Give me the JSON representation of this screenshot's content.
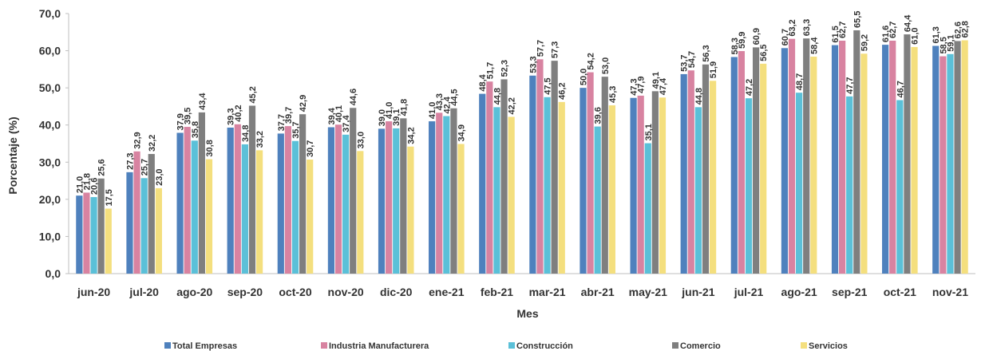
{
  "chart_data": {
    "type": "bar",
    "xlabel": "Mes",
    "ylabel": "Porcentaje (%)",
    "ylim": [
      0,
      70
    ],
    "yticks": [
      "0,0",
      "10,0",
      "20,0",
      "30,0",
      "40,0",
      "50,0",
      "60,0",
      "70,0"
    ],
    "grid": false,
    "legend_position": "bottom",
    "categories": [
      "jun-20",
      "jul-20",
      "ago-20",
      "sep-20",
      "oct-20",
      "nov-20",
      "dic-20",
      "ene-21",
      "feb-21",
      "mar-21",
      "abr-21",
      "may-21",
      "jun-21",
      "jul-21",
      "ago-21",
      "sep-21",
      "oct-21",
      "nov-21"
    ],
    "series": [
      {
        "name": "Total Empresas",
        "color": "#4f81bd",
        "values": [
          21.0,
          27.3,
          37.9,
          39.3,
          37.7,
          39.4,
          39.0,
          41.0,
          48.4,
          53.3,
          50.0,
          47.3,
          53.7,
          58.3,
          60.7,
          61.5,
          61.6,
          61.3
        ],
        "labels": [
          "21,0",
          "27,3",
          "37,9",
          "39,3",
          "37,7",
          "39,4",
          "39,0",
          "41,0",
          "48,4",
          "53,3",
          "50,0",
          "47,3",
          "53,7",
          "58,3",
          "60,7",
          "61,5",
          "61,6",
          "61,3"
        ]
      },
      {
        "name": "Industria Manufacturera",
        "color": "#d883a1",
        "values": [
          21.8,
          32.9,
          39.5,
          40.2,
          39.7,
          40.1,
          41.0,
          43.3,
          51.7,
          57.7,
          54.2,
          47.9,
          54.7,
          59.9,
          63.2,
          62.7,
          62.7,
          58.5
        ],
        "labels": [
          "21,8",
          "32,9",
          "39,5",
          "40,2",
          "39,7",
          "40,1",
          "41,0",
          "43,3",
          "51,7",
          "57,7",
          "54,2",
          "47,9",
          "54,7",
          "59,9",
          "63,2",
          "62,7",
          "62,7",
          "58,5"
        ]
      },
      {
        "name": "Construcción",
        "color": "#5bc0d8",
        "values": [
          20.6,
          25.7,
          35.8,
          34.8,
          35.7,
          37.4,
          39.1,
          42.4,
          44.8,
          47.5,
          39.6,
          35.1,
          44.8,
          47.2,
          48.7,
          47.7,
          46.7,
          59.1
        ],
        "labels": [
          "20,6",
          "25,7",
          "35,8",
          "34,8",
          "35,7",
          "37,4",
          "39,1",
          "42,4",
          "44,8",
          "47,5",
          "39,6",
          "35,1",
          "44,8",
          "47,2",
          "48,7",
          "47,7",
          "46,7",
          "59,1"
        ]
      },
      {
        "name": "Comercio",
        "color": "#7f7f7f",
        "values": [
          25.6,
          32.2,
          43.4,
          45.2,
          42.9,
          44.6,
          41.8,
          44.5,
          52.3,
          57.3,
          53.0,
          49.1,
          56.3,
          60.9,
          63.3,
          65.5,
          64.4,
          62.6
        ],
        "labels": [
          "25,6",
          "32,2",
          "43,4",
          "45,2",
          "42,9",
          "44,6",
          "41,8",
          "44,5",
          "52,3",
          "57,3",
          "53,0",
          "49,1",
          "56,3",
          "60,9",
          "63,3",
          "65,5",
          "64,4",
          "62,6"
        ]
      },
      {
        "name": "Servicios",
        "color": "#f4df7e",
        "values": [
          17.5,
          23.0,
          30.8,
          33.2,
          30.7,
          33.0,
          34.2,
          34.9,
          42.2,
          46.2,
          45.3,
          47.4,
          51.9,
          56.5,
          58.4,
          59.2,
          61.0,
          62.8
        ],
        "labels": [
          "17,5",
          "23,0",
          "30,8",
          "33,2",
          "30,7",
          "33,0",
          "34,2",
          "34,9",
          "42,2",
          "46,2",
          "45,3",
          "47,4",
          "51,9",
          "56,5",
          "58,4",
          "59,2",
          "61,0",
          "62,8"
        ]
      }
    ]
  }
}
